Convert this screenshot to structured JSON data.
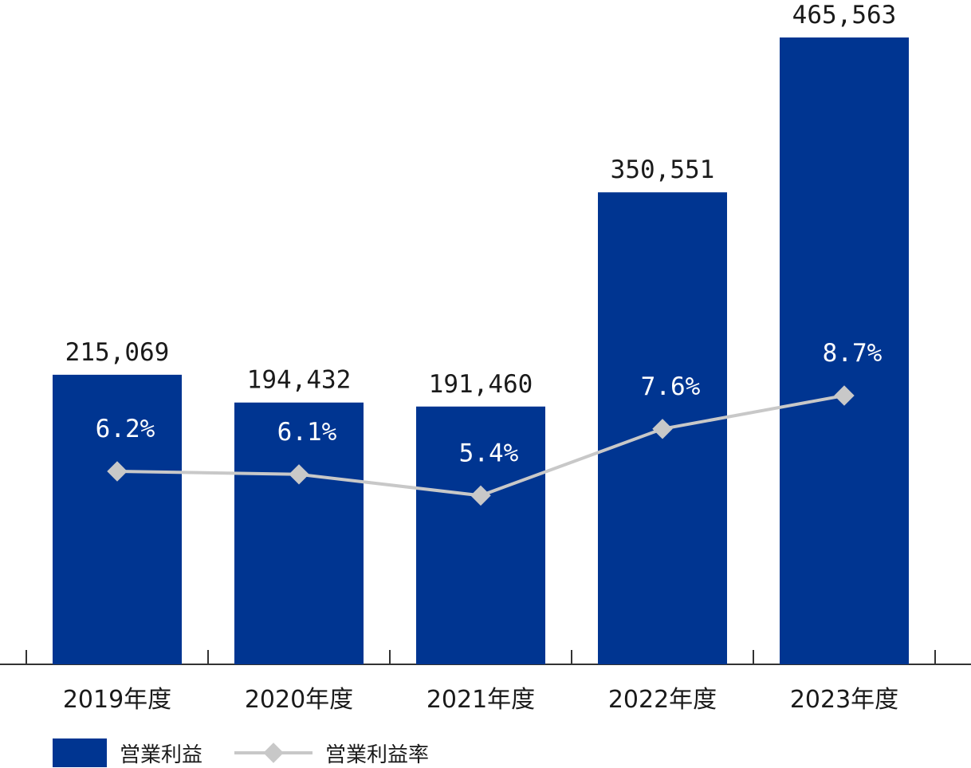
{
  "chart_data": {
    "type": "bar",
    "categories": [
      "2019年度",
      "2020年度",
      "2021年度",
      "2022年度",
      "2023年度"
    ],
    "series": [
      {
        "name": "営業利益",
        "type": "bar",
        "values": [
          215069,
          194432,
          191460,
          350551,
          465563
        ],
        "labels": [
          "215,069",
          "194,432",
          "191,460",
          "350,551",
          "465,563"
        ],
        "color": "#003591"
      },
      {
        "name": "営業利益率",
        "type": "line",
        "values": [
          6.2,
          6.1,
          5.4,
          7.6,
          8.7
        ],
        "labels": [
          "6.2%",
          "6.1%",
          "5.4%",
          "7.6%",
          "8.7%"
        ],
        "color": "#c8c8c8"
      }
    ],
    "legend_position": "bottom-left",
    "grid": false
  },
  "legend": {
    "bar_label": "営業利益",
    "line_label": "営業利益率"
  }
}
